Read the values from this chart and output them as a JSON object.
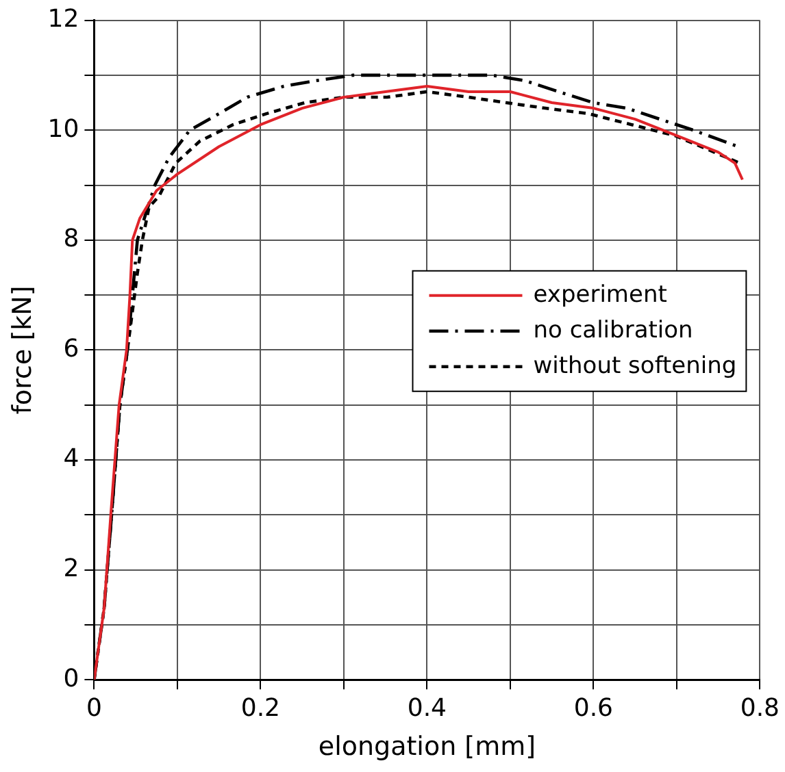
{
  "chart_data": {
    "type": "line",
    "xlabel": "elongation [mm]",
    "ylabel": "force [kN]",
    "xlim": [
      0,
      0.8
    ],
    "xticks": [
      0,
      {
        "value": 0.1,
        "label": null
      },
      0.2,
      {
        "value": 0.3,
        "label": null
      },
      0.4,
      {
        "value": 0.5,
        "label": null
      },
      0.6,
      {
        "value": 0.7,
        "label": null
      },
      0.8
    ],
    "ylim": [
      0,
      12
    ],
    "yticks": [
      0,
      {
        "value": 1,
        "label": null
      },
      2,
      {
        "value": 3,
        "label": null
      },
      4,
      {
        "value": 5,
        "label": null
      },
      6,
      {
        "value": 7,
        "label": null
      },
      8,
      {
        "value": 9,
        "label": null
      },
      10,
      {
        "value": 11,
        "label": null
      },
      12
    ],
    "grid": true,
    "legend": "right",
    "marker": "none",
    "series": [
      {
        "name": "experiment",
        "color": "#e0242a",
        "line_style": "solid",
        "x": [
          0,
          0.012,
          0.02,
          0.03,
          0.039,
          0.043,
          0.046,
          0.055,
          0.075,
          0.1,
          0.15,
          0.2,
          0.25,
          0.3,
          0.35,
          0.4,
          0.45,
          0.5,
          0.55,
          0.6,
          0.65,
          0.7,
          0.75,
          0.77,
          0.779
        ],
        "values": [
          0,
          1.3,
          3.0,
          5.0,
          6.0,
          7.0,
          8.0,
          8.4,
          8.9,
          9.2,
          9.7,
          10.1,
          10.4,
          10.6,
          10.7,
          10.8,
          10.7,
          10.7,
          10.5,
          10.4,
          10.2,
          9.9,
          9.6,
          9.4,
          9.1
        ]
      },
      {
        "name": "no calibration",
        "color": "#000000",
        "line_style": "dashed",
        "x": [
          0,
          0.012,
          0.021,
          0.031,
          0.04,
          0.052,
          0.073,
          0.09,
          0.115,
          0.15,
          0.184,
          0.228,
          0.266,
          0.311,
          0.352,
          0.392,
          0.438,
          0.478,
          0.518,
          0.558,
          0.6,
          0.64,
          0.68,
          0.72,
          0.774
        ],
        "values": [
          0,
          1.3,
          3.0,
          5.0,
          6.0,
          8.0,
          9.0,
          9.5,
          10.0,
          10.3,
          10.6,
          10.8,
          10.9,
          11.0,
          11.0,
          11.0,
          11.0,
          11.0,
          10.9,
          10.7,
          10.5,
          10.4,
          10.2,
          10.0,
          9.7
        ]
      },
      {
        "name": "without softening",
        "color": "#000000",
        "line_style": "dotted",
        "x": [
          0,
          0.012,
          0.021,
          0.031,
          0.04,
          0.052,
          0.058,
          0.066,
          0.078,
          0.098,
          0.127,
          0.167,
          0.207,
          0.253,
          0.3,
          0.352,
          0.4,
          0.45,
          0.495,
          0.542,
          0.594,
          0.646,
          0.698,
          0.745,
          0.776
        ],
        "values": [
          0,
          1.3,
          3.0,
          5.0,
          6.0,
          7.4,
          8.0,
          8.6,
          8.8,
          9.4,
          9.8,
          10.1,
          10.3,
          10.5,
          10.6,
          10.6,
          10.7,
          10.6,
          10.5,
          10.4,
          10.3,
          10.1,
          9.9,
          9.6,
          9.4
        ]
      }
    ]
  }
}
